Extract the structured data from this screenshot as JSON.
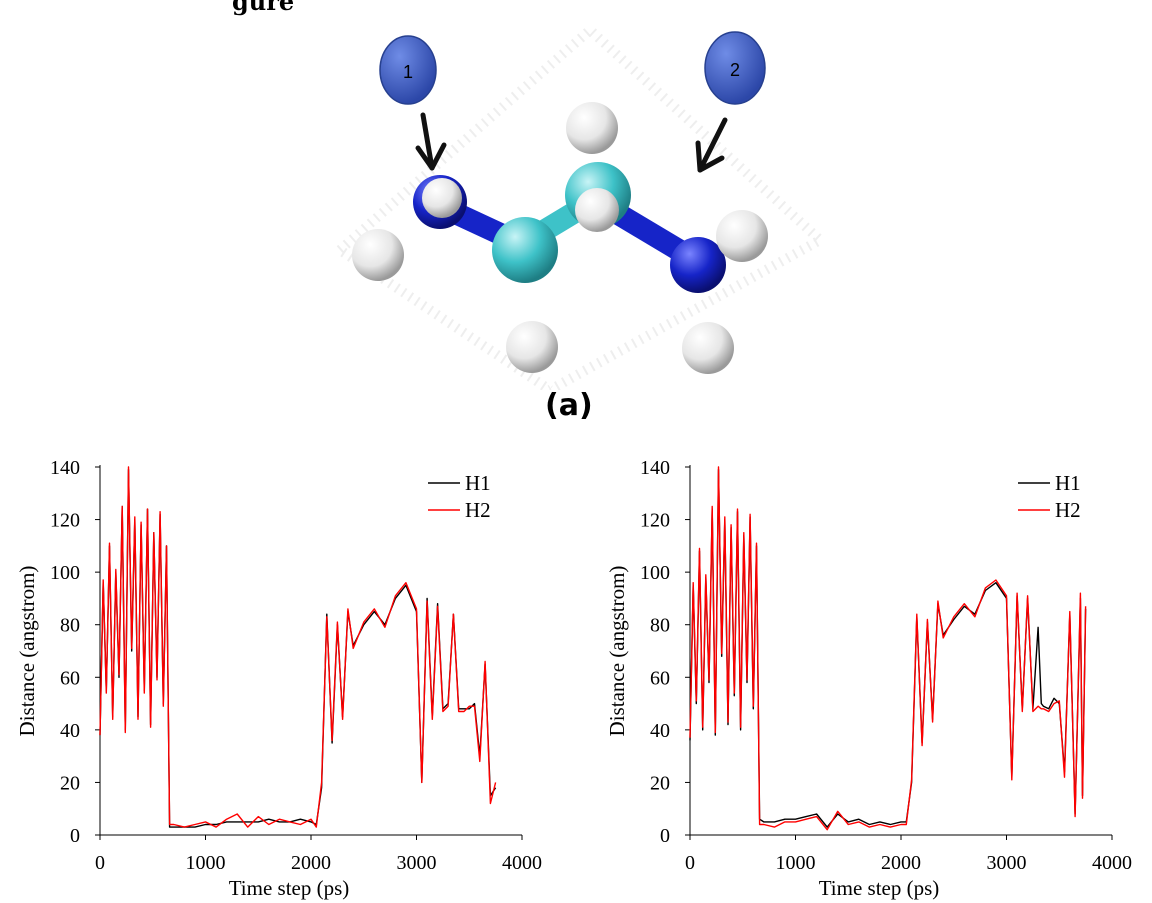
{
  "figure": {
    "cut_text": "gure",
    "panel_label": "(a)",
    "markers": [
      {
        "label": "1",
        "color": "#3a5bc4"
      },
      {
        "label": "2",
        "color": "#3a5bc4"
      }
    ],
    "atom_colors": {
      "nitrogen": "#1624c8",
      "carbon": "#3ec2c8",
      "hydrogen": "#e8e8e8"
    }
  },
  "chart_data": [
    {
      "type": "line",
      "title": "",
      "xlabel": "Time step (ps)",
      "ylabel": "Distance (angstrom)",
      "xlim": [
        0,
        4000
      ],
      "ylim": [
        0,
        140
      ],
      "xticks": [
        0,
        1000,
        2000,
        3000,
        4000
      ],
      "yticks": [
        0,
        20,
        40,
        60,
        80,
        100,
        120,
        140
      ],
      "legend_position": "top-right",
      "series": [
        {
          "name": "H1",
          "color": "#000000",
          "x": [
            0,
            30,
            60,
            90,
            120,
            150,
            180,
            210,
            240,
            270,
            300,
            330,
            360,
            390,
            420,
            450,
            480,
            510,
            540,
            570,
            600,
            630,
            660,
            700,
            800,
            900,
            1000,
            1100,
            1200,
            1300,
            1400,
            1500,
            1600,
            1700,
            1800,
            1900,
            2000,
            2050,
            2100,
            2150,
            2200,
            2250,
            2300,
            2350,
            2400,
            2500,
            2600,
            2700,
            2800,
            2900,
            3000,
            3050,
            3100,
            3150,
            3200,
            3250,
            3300,
            3350,
            3400,
            3450,
            3500,
            3550,
            3600,
            3650,
            3700,
            3750
          ],
          "y": [
            38,
            96,
            55,
            110,
            45,
            100,
            60,
            125,
            40,
            139,
            70,
            120,
            45,
            118,
            55,
            124,
            42,
            115,
            60,
            122,
            50,
            110,
            3,
            3,
            3,
            3,
            4,
            4,
            5,
            5,
            5,
            5,
            6,
            5,
            5,
            6,
            5,
            4,
            18,
            84,
            35,
            80,
            45,
            85,
            72,
            80,
            85,
            80,
            90,
            95,
            85,
            20,
            90,
            45,
            88,
            48,
            50,
            84,
            48,
            48,
            48,
            50,
            30,
            65,
            15,
            18
          ]
        },
        {
          "name": "H2",
          "color": "#ff0000",
          "x": [
            0,
            30,
            60,
            90,
            120,
            150,
            180,
            210,
            240,
            270,
            300,
            330,
            360,
            390,
            420,
            450,
            480,
            510,
            540,
            570,
            600,
            630,
            660,
            700,
            800,
            900,
            1000,
            1100,
            1200,
            1300,
            1400,
            1500,
            1600,
            1700,
            1800,
            1900,
            2000,
            2050,
            2100,
            2150,
            2200,
            2250,
            2300,
            2350,
            2400,
            2500,
            2600,
            2700,
            2800,
            2900,
            3000,
            3050,
            3100,
            3150,
            3200,
            3250,
            3300,
            3350,
            3400,
            3450,
            3500,
            3550,
            3600,
            3650,
            3700,
            3750
          ],
          "y": [
            38,
            97,
            54,
            111,
            44,
            101,
            61,
            125,
            39,
            140,
            71,
            121,
            44,
            119,
            54,
            124,
            41,
            115,
            59,
            123,
            49,
            110,
            4,
            4,
            3,
            4,
            5,
            3,
            6,
            8,
            3,
            7,
            4,
            6,
            5,
            4,
            6,
            3,
            20,
            83,
            36,
            81,
            44,
            86,
            71,
            81,
            86,
            79,
            91,
            96,
            86,
            20,
            89,
            44,
            87,
            47,
            49,
            84,
            47,
            47,
            49,
            49,
            28,
            66,
            12,
            20
          ]
        }
      ]
    },
    {
      "type": "line",
      "title": "",
      "xlabel": "Time step (ps)",
      "ylabel": "Distance (angstrom)",
      "xlim": [
        0,
        4000
      ],
      "ylim": [
        0,
        140
      ],
      "xticks": [
        0,
        1000,
        2000,
        3000,
        4000
      ],
      "yticks": [
        0,
        20,
        40,
        60,
        80,
        100,
        120,
        140
      ],
      "legend_position": "top-right",
      "series": [
        {
          "name": "H1",
          "color": "#000000",
          "x": [
            0,
            30,
            60,
            90,
            120,
            150,
            180,
            210,
            240,
            270,
            300,
            330,
            360,
            390,
            420,
            450,
            480,
            510,
            540,
            570,
            600,
            630,
            660,
            700,
            800,
            900,
            1000,
            1100,
            1200,
            1300,
            1400,
            1500,
            1600,
            1700,
            1800,
            1900,
            2000,
            2050,
            2100,
            2150,
            2200,
            2250,
            2300,
            2350,
            2400,
            2500,
            2600,
            2700,
            2800,
            2900,
            3000,
            3050,
            3100,
            3150,
            3200,
            3250,
            3300,
            3330,
            3350,
            3400,
            3450,
            3500,
            3550,
            3600,
            3650,
            3700,
            3720,
            3750
          ],
          "y": [
            36,
            95,
            50,
            108,
            40,
            98,
            58,
            124,
            38,
            139,
            68,
            120,
            42,
            117,
            53,
            123,
            40,
            114,
            58,
            121,
            48,
            110,
            6,
            5,
            5,
            6,
            6,
            7,
            8,
            3,
            8,
            5,
            6,
            4,
            5,
            4,
            5,
            5,
            20,
            83,
            35,
            81,
            44,
            88,
            76,
            82,
            87,
            84,
            93,
            96,
            90,
            22,
            91,
            48,
            90,
            48,
            79,
            50,
            49,
            48,
            52,
            50,
            24,
            84,
            8,
            90,
            15,
            86
          ]
        },
        {
          "name": "H2",
          "color": "#ff0000",
          "x": [
            0,
            30,
            60,
            90,
            120,
            150,
            180,
            210,
            240,
            270,
            300,
            330,
            360,
            390,
            420,
            450,
            480,
            510,
            540,
            570,
            600,
            630,
            660,
            700,
            800,
            900,
            1000,
            1100,
            1200,
            1300,
            1400,
            1500,
            1600,
            1700,
            1800,
            1900,
            2000,
            2050,
            2100,
            2150,
            2200,
            2250,
            2300,
            2350,
            2400,
            2500,
            2600,
            2700,
            2800,
            2900,
            3000,
            3050,
            3100,
            3150,
            3200,
            3250,
            3300,
            3330,
            3350,
            3400,
            3450,
            3500,
            3550,
            3600,
            3650,
            3700,
            3720,
            3750
          ],
          "y": [
            37,
            96,
            51,
            109,
            41,
            99,
            59,
            125,
            39,
            140,
            69,
            121,
            43,
            118,
            54,
            124,
            41,
            115,
            59,
            122,
            49,
            111,
            4,
            4,
            3,
            5,
            5,
            6,
            7,
            2,
            9,
            4,
            5,
            3,
            4,
            3,
            4,
            4,
            21,
            84,
            34,
            82,
            43,
            89,
            75,
            83,
            88,
            83,
            94,
            97,
            91,
            21,
            92,
            47,
            91,
            47,
            49,
            48,
            48,
            47,
            50,
            51,
            22,
            85,
            7,
            92,
            14,
            87
          ]
        }
      ]
    }
  ]
}
